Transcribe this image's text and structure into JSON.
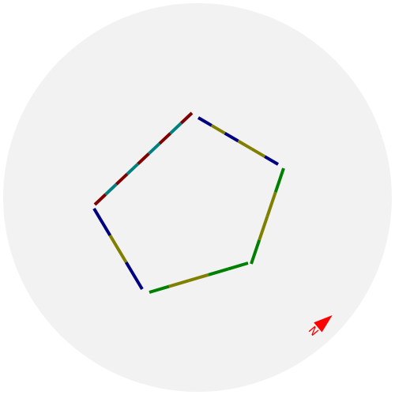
{
  "compass": {
    "label": "N",
    "arrow_color": "#ff0000"
  },
  "arena": {
    "background_color": "#f2f2f2"
  },
  "track": {
    "colors": {
      "navy": "#000080",
      "olive": "#808000",
      "green": "#008000",
      "teal": "#008080",
      "maroon": "#800000"
    },
    "edges": [
      {
        "name": "edge-top-right",
        "pattern": [
          "navy",
          "olive",
          "navy",
          "olive",
          "olive",
          "navy"
        ]
      },
      {
        "name": "edge-right",
        "pattern": [
          "green",
          "olive",
          "olive",
          "green"
        ]
      },
      {
        "name": "edge-bottom",
        "pattern": [
          "green",
          "olive",
          "olive",
          "green",
          "green"
        ]
      },
      {
        "name": "edge-left",
        "pattern": [
          "navy",
          "olive",
          "navy"
        ]
      },
      {
        "name": "edge-top-left",
        "pattern": [
          "maroon",
          "teal",
          "maroon",
          "teal",
          "maroon",
          "teal",
          "maroon",
          "teal",
          "maroon"
        ]
      }
    ]
  }
}
